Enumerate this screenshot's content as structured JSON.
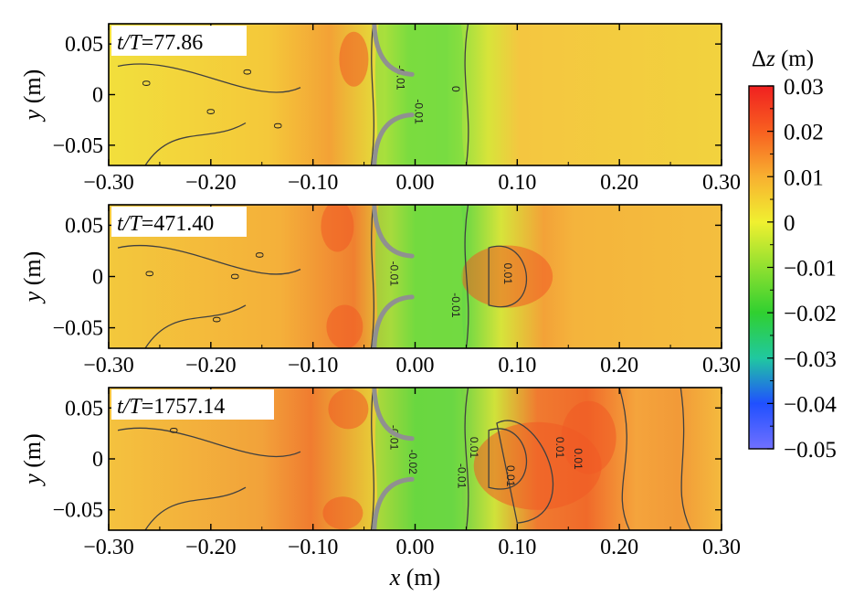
{
  "chart_data": {
    "type": "heatmap",
    "panels": [
      {
        "time_label_italic": "t/T",
        "time_label_value": "=77.86"
      },
      {
        "time_label_italic": "t/T",
        "time_label_value": "=471.40"
      },
      {
        "time_label_italic": "t/T",
        "time_label_value": "=1757.14"
      }
    ],
    "x_axis": {
      "label_italic": "x",
      "label_unit": " (m)",
      "range": [
        -0.3,
        0.3
      ],
      "ticks": [
        -0.3,
        -0.2,
        -0.1,
        0.0,
        0.1,
        0.2,
        0.3
      ],
      "tick_labels": [
        "−0.30",
        "−0.20",
        "−0.10",
        "0.00",
        "0.10",
        "0.20",
        "0.30"
      ]
    },
    "y_axis": {
      "label_italic": "y",
      "label_unit": " (m)",
      "range": [
        -0.07,
        0.07
      ],
      "ticks": [
        0.05,
        0.0,
        -0.05
      ],
      "tick_labels": [
        "0.05",
        "0",
        "−0.05"
      ]
    },
    "colorbar": {
      "title_symbol": "Δ",
      "title_italic": "z",
      "title_unit": " (m)",
      "range": [
        -0.05,
        0.03
      ],
      "ticks": [
        0.03,
        0.02,
        0.01,
        0,
        -0.01,
        -0.02,
        -0.03,
        -0.04,
        -0.05
      ],
      "tick_labels": [
        "0.03",
        "0.02",
        "0.01",
        "0",
        "−0.01",
        "−0.02",
        "−0.03",
        "−0.04",
        "−0.05"
      ],
      "colors": [
        "#7070ff",
        "#2050ff",
        "#20c8a0",
        "#30d030",
        "#90e030",
        "#f0f030",
        "#f8b030",
        "#f86020",
        "#f02020"
      ]
    },
    "contour_labels": [
      [
        "0",
        "0",
        "0",
        "0",
        "0",
        "-0.01",
        "-0.01"
      ],
      [
        "0",
        "0",
        "0",
        "0",
        "0.01",
        "-0.01",
        "-0.01"
      ],
      [
        "0",
        "-0.02",
        "0.01",
        "0.01",
        "0.01",
        "-0.01",
        "-0.01",
        "0.01"
      ]
    ],
    "colors": {
      "structure": "#909090",
      "contour": "#404040",
      "frame": "#000000"
    }
  }
}
